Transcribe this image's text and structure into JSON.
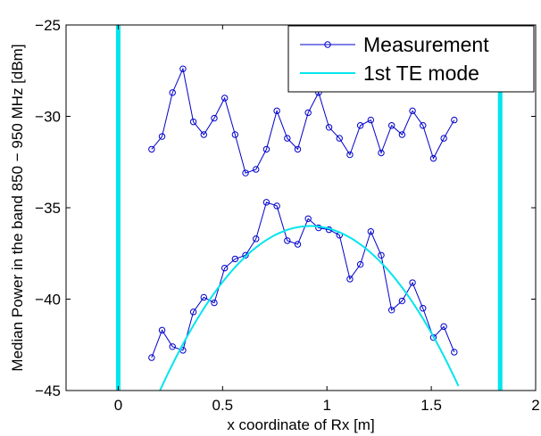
{
  "chart_data": {
    "type": "line",
    "xlabel": "x coordinate of Rx [m]",
    "ylabel": "Median Power in the band 850 − 950 MHz [dBm]",
    "xlim": [
      -0.25,
      2.0
    ],
    "ylim": [
      -45,
      -25
    ],
    "xticks": [
      0,
      0.5,
      1,
      1.5,
      2
    ],
    "xtick_labels": [
      "0",
      "0.5",
      "1",
      "1.5",
      "2"
    ],
    "yticks": [
      -45,
      -40,
      -35,
      -30,
      -25
    ],
    "ytick_labels": [
      "−45",
      "−40",
      "−35",
      "−30",
      "−25"
    ],
    "grid": false,
    "legend_position": "top-right",
    "series": [
      {
        "name": "Measurement",
        "color": "#0000cc",
        "marker": "circle",
        "x": [
          0.16,
          0.21,
          0.26,
          0.31,
          0.36,
          0.41,
          0.46,
          0.51,
          0.56,
          0.61,
          0.66,
          0.71,
          0.76,
          0.81,
          0.86,
          0.91,
          0.96,
          1.01,
          1.06,
          1.11,
          1.16,
          1.21,
          1.26,
          1.31,
          1.36,
          1.41,
          1.46,
          1.51,
          1.56,
          1.61
        ],
        "y": [
          -31.8,
          -31.1,
          -28.7,
          -27.4,
          -30.3,
          -31.0,
          -30.1,
          -29.0,
          -31.0,
          -33.1,
          -32.9,
          -31.8,
          -29.7,
          -31.2,
          -31.8,
          -29.8,
          -28.7,
          -30.6,
          -31.2,
          -32.1,
          -30.5,
          -30.2,
          -32.0,
          -30.5,
          -31.0,
          -29.7,
          -30.5,
          -32.3,
          -31.2,
          -30.2
        ]
      },
      {
        "name": "",
        "color": "#0000cc",
        "marker": "circle",
        "x": [
          0.16,
          0.21,
          0.26,
          0.31,
          0.36,
          0.41,
          0.46,
          0.51,
          0.56,
          0.61,
          0.66,
          0.71,
          0.76,
          0.81,
          0.86,
          0.91,
          0.96,
          1.01,
          1.06,
          1.11,
          1.16,
          1.21,
          1.26,
          1.31,
          1.36,
          1.41,
          1.46,
          1.51,
          1.56,
          1.61
        ],
        "y": [
          -43.2,
          -41.7,
          -42.6,
          -42.8,
          -40.7,
          -39.9,
          -40.2,
          -38.3,
          -37.8,
          -37.6,
          -36.7,
          -34.7,
          -34.9,
          -36.8,
          -37.0,
          -35.6,
          -36.1,
          -36.2,
          -36.5,
          -38.9,
          -38.1,
          -36.3,
          -37.6,
          -40.6,
          -40.1,
          -39.1,
          -40.5,
          -42.1,
          -41.5,
          -42.9
        ]
      },
      {
        "name": "1st TE mode",
        "color": "#00e5ee",
        "marker": "none",
        "curve": "parabola",
        "vertex_x": 0.92,
        "vertex_y": -36.0,
        "x_range": [
          0.2,
          1.63
        ],
        "endpoint_y": -45.0
      }
    ],
    "vertical_lines": [
      {
        "x": 0.0,
        "color": "#00e5ee"
      },
      {
        "x": 1.83,
        "color": "#00e5ee"
      }
    ],
    "legend": [
      {
        "label": "Measurement",
        "color": "#0000cc",
        "marker": "circle"
      },
      {
        "label": "1st TE mode",
        "color": "#00e5ee",
        "marker": "none"
      }
    ]
  }
}
